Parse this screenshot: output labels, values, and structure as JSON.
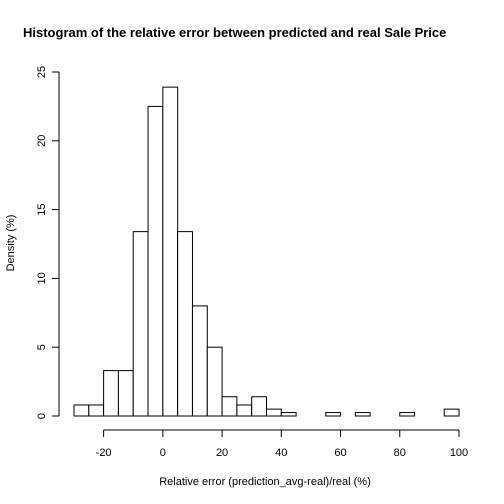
{
  "chart_data": {
    "type": "bar",
    "title": "Histogram of the relative error between predicted and real Sale Price",
    "xlabel": "Relative error (prediction_avg-real)/real (%)",
    "ylabel": "Density (%)",
    "xlim": [
      -30,
      100
    ],
    "ylim": [
      0,
      25
    ],
    "x_ticks": [
      -20,
      0,
      20,
      40,
      60,
      80,
      100
    ],
    "y_ticks": [
      0,
      5,
      10,
      15,
      20,
      25
    ],
    "bin_width": 5,
    "bins": [
      {
        "start": -30,
        "end": -25,
        "value": 0.8
      },
      {
        "start": -25,
        "end": -20,
        "value": 0.8
      },
      {
        "start": -20,
        "end": -15,
        "value": 3.3
      },
      {
        "start": -15,
        "end": -10,
        "value": 3.3
      },
      {
        "start": -10,
        "end": -5,
        "value": 13.4
      },
      {
        "start": -5,
        "end": 0,
        "value": 22.5
      },
      {
        "start": 0,
        "end": 5,
        "value": 23.9
      },
      {
        "start": 5,
        "end": 10,
        "value": 13.4
      },
      {
        "start": 10,
        "end": 15,
        "value": 8.0
      },
      {
        "start": 15,
        "end": 20,
        "value": 5.0
      },
      {
        "start": 20,
        "end": 25,
        "value": 1.4
      },
      {
        "start": 25,
        "end": 30,
        "value": 0.8
      },
      {
        "start": 30,
        "end": 35,
        "value": 1.4
      },
      {
        "start": 35,
        "end": 40,
        "value": 0.5
      },
      {
        "start": 40,
        "end": 45,
        "value": 0.25
      },
      {
        "start": 45,
        "end": 50,
        "value": 0
      },
      {
        "start": 50,
        "end": 55,
        "value": 0
      },
      {
        "start": 55,
        "end": 60,
        "value": 0.25
      },
      {
        "start": 60,
        "end": 65,
        "value": 0
      },
      {
        "start": 65,
        "end": 70,
        "value": 0.25
      },
      {
        "start": 70,
        "end": 75,
        "value": 0
      },
      {
        "start": 75,
        "end": 80,
        "value": 0
      },
      {
        "start": 80,
        "end": 85,
        "value": 0.25
      },
      {
        "start": 85,
        "end": 90,
        "value": 0
      },
      {
        "start": 90,
        "end": 95,
        "value": 0
      },
      {
        "start": 95,
        "end": 100,
        "value": 0.5
      }
    ]
  }
}
